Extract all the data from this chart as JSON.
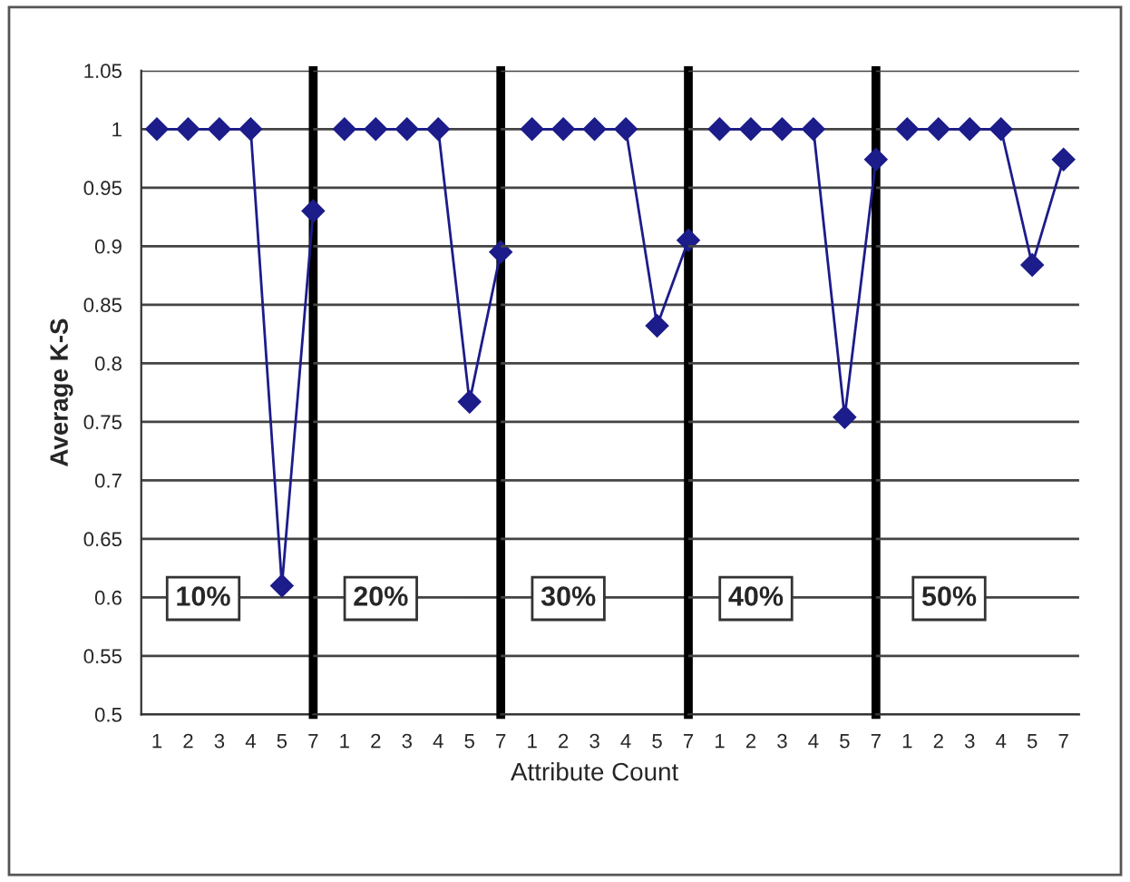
{
  "chart_data": [
    {
      "type": "line",
      "ylabel": "Average K-S",
      "categories": [
        "1",
        "2",
        "3",
        "4",
        "5",
        "7"
      ],
      "series": [
        {
          "color": "#1c1c8a",
          "values": [
            1,
            1,
            1,
            1,
            0.61,
            0.93
          ]
        }
      ],
      "ylim": [
        0.5,
        1.05
      ],
      "yticks": [
        0.5,
        0.55,
        0.6,
        0.65,
        0.7,
        0.75,
        0.8,
        0.85,
        0.9,
        0.95,
        1,
        1.05
      ],
      "annotations": [
        "10%"
      ],
      "grid": "y",
      "marker": "diamond",
      "line_style": "solid"
    },
    {
      "type": "line",
      "categories": [
        "1",
        "2",
        "3",
        "4",
        "5",
        "7"
      ],
      "series": [
        {
          "color": "#1c1c8a",
          "values": [
            1,
            1,
            1,
            1,
            0.767,
            0.895
          ]
        }
      ],
      "ylim": [
        0.5,
        1.05
      ],
      "yticks": [
        0.5,
        0.55,
        0.6,
        0.65,
        0.7,
        0.75,
        0.8,
        0.85,
        0.9,
        0.95,
        1,
        1.05
      ],
      "annotations": [
        "20%"
      ],
      "grid": "y",
      "marker": "diamond",
      "line_style": "solid",
      "tick_labels": "x"
    },
    {
      "type": "line",
      "xlabel": "Attribute Count",
      "categories": [
        "1",
        "2",
        "3",
        "4",
        "5",
        "7"
      ],
      "series": [
        {
          "color": "#1c1c8a",
          "values": [
            1,
            1,
            1,
            1,
            0.832,
            0.905
          ]
        }
      ],
      "ylim": [
        0.5,
        1.05
      ],
      "yticks": [
        0.5,
        0.55,
        0.6,
        0.65,
        0.7,
        0.75,
        0.8,
        0.85,
        0.9,
        0.95,
        1,
        1.05
      ],
      "annotations": [
        "30%"
      ],
      "grid": "y",
      "marker": "diamond",
      "line_style": "solid",
      "tick_labels": "x"
    },
    {
      "type": "line",
      "categories": [
        "1",
        "2",
        "3",
        "4",
        "5",
        "7"
      ],
      "series": [
        {
          "color": "#1c1c8a",
          "values": [
            1,
            1,
            1,
            1,
            0.754,
            0.974
          ]
        }
      ],
      "ylim": [
        0.5,
        1.05
      ],
      "yticks": [
        0.5,
        0.55,
        0.6,
        0.65,
        0.7,
        0.75,
        0.8,
        0.85,
        0.9,
        0.95,
        1,
        1.05
      ],
      "annotations": [
        "40%"
      ],
      "grid": "y",
      "marker": "diamond",
      "line_style": "solid",
      "tick_labels": "x"
    },
    {
      "type": "line",
      "categories": [
        "1",
        "2",
        "3",
        "4",
        "5",
        "7"
      ],
      "series": [
        {
          "color": "#1c1c8a",
          "values": [
            1,
            1,
            1,
            1,
            0.884,
            0.974
          ]
        }
      ],
      "ylim": [
        0.5,
        1.05
      ],
      "yticks": [
        0.5,
        0.55,
        0.6,
        0.65,
        0.7,
        0.75,
        0.8,
        0.85,
        0.9,
        0.95,
        1,
        1.05
      ],
      "annotations": [
        "50%"
      ],
      "grid": "y",
      "marker": "diamond",
      "line_style": "solid",
      "tick_labels": "x"
    }
  ]
}
